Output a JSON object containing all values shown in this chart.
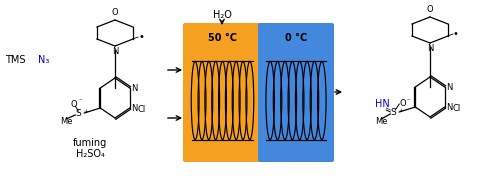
{
  "fig_width": 5.0,
  "fig_height": 1.8,
  "dpi": 100,
  "bg_color": "#ffffff",
  "orange_color": "#F5A020",
  "blue_color": "#4488DD",
  "coil_color": "#000000",
  "tms_color": "#0000CC",
  "hn_color": "#0000CC",
  "temp1": "50 °C",
  "temp2": "0 °C",
  "water_label": "H₂O",
  "fuming_line1": "fuming",
  "fuming_line2": "H₂SO₄"
}
